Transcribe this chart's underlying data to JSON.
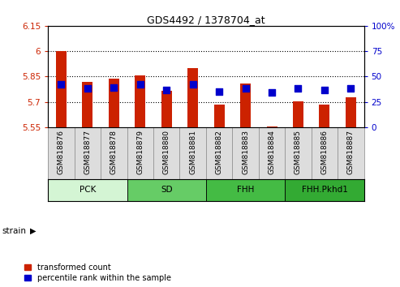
{
  "title": "GDS4492 / 1378704_at",
  "samples": [
    "GSM818876",
    "GSM818877",
    "GSM818878",
    "GSM818879",
    "GSM818880",
    "GSM818881",
    "GSM818882",
    "GSM818883",
    "GSM818884",
    "GSM818885",
    "GSM818886",
    "GSM818887"
  ],
  "red_values": [
    6.0,
    5.82,
    5.835,
    5.855,
    5.765,
    5.9,
    5.685,
    5.81,
    5.555,
    5.705,
    5.685,
    5.725
  ],
  "blue_percentiles": [
    42,
    38,
    39,
    42,
    37,
    42,
    35,
    38,
    34,
    38,
    37,
    38
  ],
  "ylim_left": [
    5.55,
    6.15
  ],
  "ylim_right": [
    0,
    100
  ],
  "yticks_left": [
    5.55,
    5.7,
    5.85,
    6.0,
    6.15
  ],
  "yticks_right": [
    0,
    25,
    50,
    75,
    100
  ],
  "ytick_labels_left": [
    "5.55",
    "5.7",
    "5.85",
    "6",
    "6.15"
  ],
  "ytick_labels_right": [
    "0",
    "25",
    "50",
    "75",
    "100%"
  ],
  "hlines": [
    5.7,
    5.85,
    6.0
  ],
  "groups": [
    {
      "label": "PCK",
      "start": 0,
      "end": 2,
      "color": "#d4f5d4"
    },
    {
      "label": "SD",
      "start": 3,
      "end": 5,
      "color": "#66cc66"
    },
    {
      "label": "FHH",
      "start": 6,
      "end": 8,
      "color": "#44bb44"
    },
    {
      "label": "FHH.Pkhd1",
      "start": 9,
      "end": 11,
      "color": "#33aa33"
    }
  ],
  "bar_color": "#cc2200",
  "dot_color": "#0000cc",
  "bar_width": 0.4,
  "dot_size": 35,
  "legend_red": "transformed count",
  "legend_blue": "percentile rank within the sample",
  "left_tick_color": "#cc2200",
  "right_tick_color": "#0000cc",
  "strain_label": "strain"
}
